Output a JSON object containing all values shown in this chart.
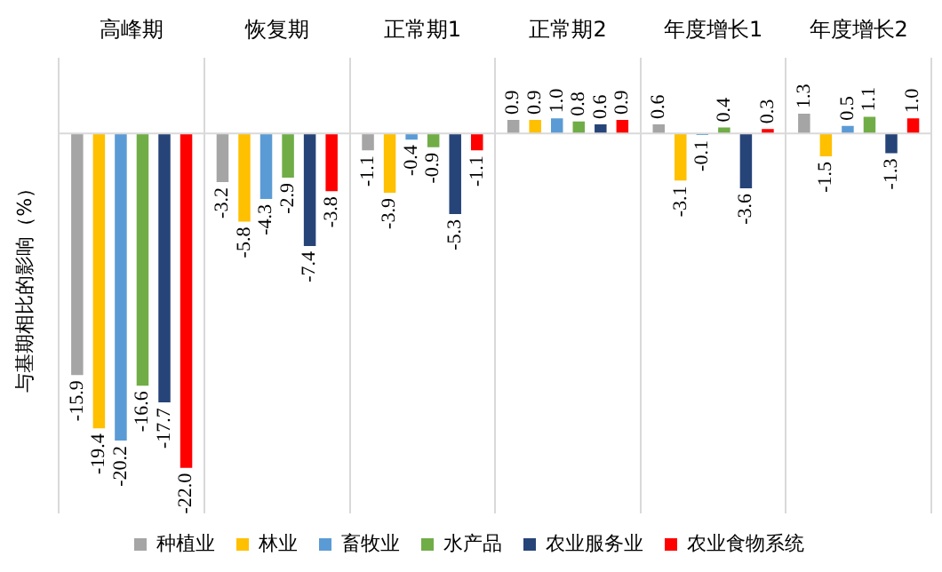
{
  "chart_data": {
    "type": "bar",
    "ylabel": "与基期相比的影响（%）",
    "categories": [
      "高峰期",
      "恢复期",
      "正常期1",
      "正常期2",
      "年度增长1",
      "年度增长2"
    ],
    "series": [
      {
        "name": "种植业",
        "color": "#a5a5a5",
        "values": [
          -15.9,
          -3.2,
          -1.1,
          0.9,
          0.6,
          1.3
        ],
        "value_labels": [
          "-15.9",
          "-3.2",
          "-1.1",
          "0.9",
          "0.6",
          "1.3"
        ]
      },
      {
        "name": "林业",
        "color": "#ffc000",
        "values": [
          -19.4,
          -5.8,
          -3.9,
          0.9,
          -3.1,
          -1.5
        ],
        "value_labels": [
          "-19.4",
          "-5.8",
          "-3.9",
          "0.9",
          "-3.1",
          "-1.5"
        ]
      },
      {
        "name": "畜牧业",
        "color": "#5b9bd5",
        "values": [
          -20.2,
          -4.3,
          -0.4,
          1.0,
          -0.1,
          0.5
        ],
        "value_labels": [
          "-20.2",
          "-4.3",
          "-0.4",
          "1.0",
          "-0.1",
          "0.5"
        ]
      },
      {
        "name": "水产品",
        "color": "#70ad47",
        "values": [
          -16.6,
          -2.9,
          -0.9,
          0.8,
          0.4,
          1.1
        ],
        "value_labels": [
          "-16.6",
          "-2.9",
          "-0.9",
          "0.8",
          "0.4",
          "1.1"
        ]
      },
      {
        "name": "农业服务业",
        "color": "#264478",
        "values": [
          -17.7,
          -7.4,
          -5.3,
          0.6,
          -3.6,
          -1.3
        ],
        "value_labels": [
          "-17.7",
          "-7.4",
          "-5.3",
          "0.6",
          "-3.6",
          "-1.3"
        ]
      },
      {
        "name": "农业食物系统",
        "color": "#ff0000",
        "values": [
          -22.0,
          -3.8,
          -1.1,
          0.9,
          0.3,
          1.0
        ],
        "value_labels": [
          "-22.0",
          "-3.8",
          "-1.1",
          "0.9",
          "0.3",
          "1.0"
        ]
      }
    ],
    "ylim": [
      -25,
      5
    ],
    "grid": "x",
    "legend": "bottom"
  }
}
